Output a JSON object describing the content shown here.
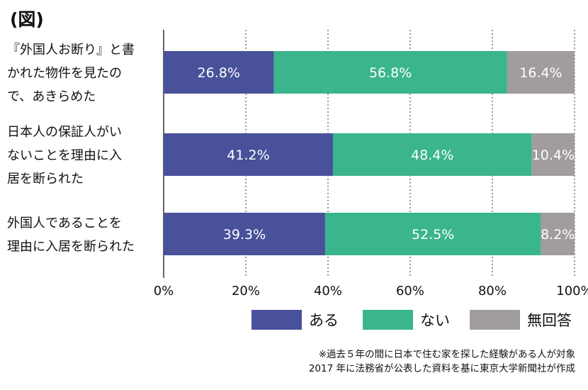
{
  "figure_label": "(図)",
  "chart_data": {
    "type": "bar",
    "orientation": "horizontal",
    "stacked": true,
    "categories": [
      "『外国人お断り』と書かれた物件を見たので、あきらめた",
      "日本人の保証人がいないことを理由に入居を断られた",
      "外国人であることを理由に入居を断られた"
    ],
    "category_lines": [
      [
        "『外国人お断り』と書",
        "かれた物件を見たの",
        "で、あきらめた"
      ],
      [
        "日本人の保証人がい",
        "ないことを理由に入",
        "居を断られた"
      ],
      [
        "外国人であることを",
        "理由に入居を断られた"
      ]
    ],
    "series": [
      {
        "name": "ある",
        "values": [
          26.8,
          41.2,
          39.3
        ],
        "color": "#48519a"
      },
      {
        "name": "ない",
        "values": [
          56.8,
          48.4,
          52.5
        ],
        "color": "#3bb58d"
      },
      {
        "name": "無回答",
        "values": [
          16.4,
          10.4,
          8.2
        ],
        "color": "#a09d9c"
      }
    ],
    "data_labels": [
      [
        "26.8%",
        "56.8%",
        "16.4%"
      ],
      [
        "41.2%",
        "48.4%",
        "10.4%"
      ],
      [
        "39.3%",
        "52.5%",
        "8.2%"
      ]
    ],
    "xlim": [
      0,
      100
    ],
    "xticks": [
      "0%",
      "20%",
      "40%",
      "60%",
      "80%",
      "100%"
    ],
    "grid": "vertical dashed",
    "legend_position": "bottom"
  },
  "legend": [
    {
      "label": "ある",
      "color": "#48519a"
    },
    {
      "label": "ない",
      "color": "#3bb58d"
    },
    {
      "label": "無回答",
      "color": "#a09d9c"
    }
  ],
  "note": {
    "line1": "※過去５年の間に日本で住む家を探した経験がある人が対象",
    "line2": "2017 年に法務省が公表した資料を基に東京大学新聞社が作成"
  }
}
